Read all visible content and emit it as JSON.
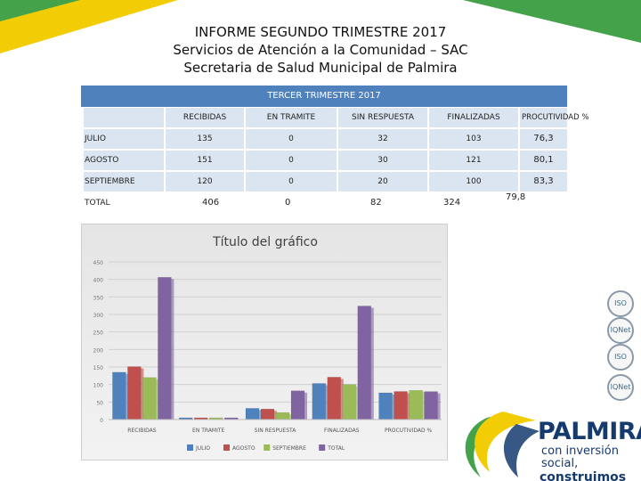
{
  "header": {
    "line1": "INFORME SEGUNDO TRIMESTRE 2017",
    "line2": "Servicios de Atención a la Comunidad – SAC",
    "line3": "Secretaria de Salud Municipal de Palmira"
  },
  "table": {
    "title": "TERCER TRIMESTRE 2017",
    "columns": [
      "RECIBIDAS",
      "EN TRAMITE",
      "SIN RESPUESTA",
      "FINALIZADAS",
      "PROCUTIVIDAD %"
    ],
    "rows": [
      {
        "label": "JULIO",
        "values": [
          "135",
          "0",
          "32",
          "103",
          "76,3"
        ]
      },
      {
        "label": "AGOSTO",
        "values": [
          "151",
          "0",
          "30",
          "121",
          "80,1"
        ]
      },
      {
        "label": "SEPTIEMBRE",
        "values": [
          "120",
          "0",
          "20",
          "100",
          "83,3"
        ]
      }
    ],
    "total": {
      "label": "TOTAL",
      "values": [
        "406",
        "0",
        "82",
        "324",
        "79,8"
      ]
    }
  },
  "chart_data": {
    "type": "bar",
    "title": "Título del gráfico",
    "categories": [
      "RECIBIDAS",
      "EN TRAMITE",
      "SIN RESPUESTA",
      "FINALIZADAS",
      "PROCUTIVIDAD %"
    ],
    "series": [
      {
        "name": "JULIO",
        "color": "#4f81bd",
        "values": [
          135,
          0,
          32,
          103,
          76.3
        ]
      },
      {
        "name": "AGOSTO",
        "color": "#c0504d",
        "values": [
          151,
          0,
          30,
          121,
          80.1
        ]
      },
      {
        "name": "SEPTIEMBRE",
        "color": "#9bbb59",
        "values": [
          120,
          0,
          20,
          100,
          83.3
        ]
      },
      {
        "name": "TOTAL",
        "color": "#8064a2",
        "values": [
          406,
          0,
          82,
          324,
          79.8
        ]
      }
    ],
    "ylim": [
      0,
      450
    ],
    "yticks": [
      0,
      50,
      100,
      150,
      200,
      250,
      300,
      350,
      400,
      450
    ],
    "legend": "bottom",
    "grid": true
  },
  "seals": [
    "ISO",
    "IQNet",
    "ISO",
    "IQNet"
  ],
  "logo": {
    "name": "PALMIRA",
    "tagline1": "con inversión social,",
    "tagline2": "construimos paz",
    "colors": {
      "blue": "#143a6e",
      "yellow": "#f2cd05",
      "green": "#43a24a"
    }
  }
}
